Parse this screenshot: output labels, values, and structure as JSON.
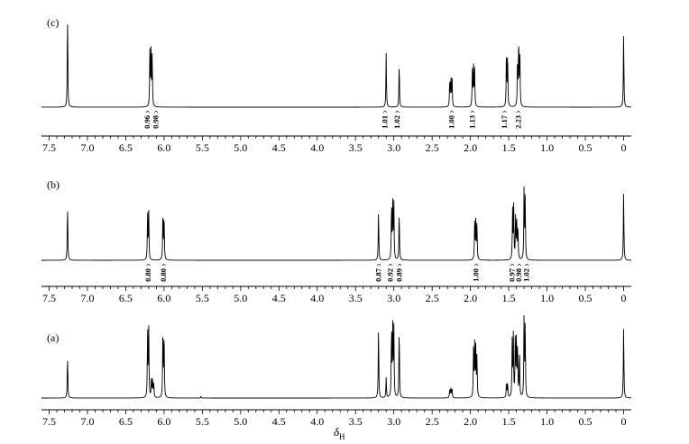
{
  "chart_data": [
    {
      "type": "line",
      "panel_label": "(c)",
      "xlim": [
        7.6,
        -0.1
      ],
      "tick_labels": [
        "7.5",
        "7.0",
        "6.5",
        "6.0",
        "5.5",
        "5.0",
        "4.5",
        "4.0",
        "3.5",
        "3.0",
        "2.5",
        "2.0",
        "1.5",
        "1.0",
        "0.5",
        "0"
      ],
      "peaks": [
        {
          "ppm": 7.26,
          "height": 1.0
        },
        {
          "ppm": 6.185,
          "height": 0.56
        },
        {
          "ppm": 6.17,
          "height": 0.57
        },
        {
          "ppm": 6.155,
          "height": 0.55
        },
        {
          "ppm": 3.1,
          "height": 0.56
        },
        {
          "ppm": 2.93,
          "height": 0.48
        },
        {
          "ppm": 2.27,
          "height": 0.3
        },
        {
          "ppm": 2.255,
          "height": 0.31
        },
        {
          "ppm": 2.24,
          "height": 0.3
        },
        {
          "ppm": 1.975,
          "height": 0.38
        },
        {
          "ppm": 1.96,
          "height": 0.4
        },
        {
          "ppm": 1.945,
          "height": 0.38
        },
        {
          "ppm": 1.53,
          "height": 0.54
        },
        {
          "ppm": 1.515,
          "height": 0.58
        },
        {
          "ppm": 1.385,
          "height": 0.5
        },
        {
          "ppm": 1.37,
          "height": 0.71
        },
        {
          "ppm": 1.355,
          "height": 0.58
        },
        {
          "ppm": 0.0,
          "height": 0.78
        }
      ],
      "integrations": [
        {
          "ppm": 6.22,
          "label": "0.96"
        },
        {
          "ppm": 6.11,
          "label": "0.98"
        },
        {
          "ppm": 3.12,
          "label": "1.01"
        },
        {
          "ppm": 2.96,
          "label": "1.02"
        },
        {
          "ppm": 2.25,
          "label": "1.00"
        },
        {
          "ppm": 1.98,
          "label": "1.13"
        },
        {
          "ppm": 1.56,
          "label": "1.17"
        },
        {
          "ppm": 1.38,
          "label": "2.23"
        }
      ]
    },
    {
      "type": "line",
      "panel_label": "(b)",
      "xlim": [
        7.6,
        -0.1
      ],
      "tick_labels": [
        "7.5",
        "7.0",
        "6.5",
        "6.0",
        "5.5",
        "5.0",
        "4.5",
        "4.0",
        "3.5",
        "3.0",
        "2.5",
        "2.0",
        "1.5",
        "1.0",
        "0.5",
        "0"
      ],
      "peaks": [
        {
          "ppm": 7.26,
          "height": 0.67
        },
        {
          "ppm": 6.215,
          "height": 0.55
        },
        {
          "ppm": 6.2,
          "height": 0.56
        },
        {
          "ppm": 6.015,
          "height": 0.55
        },
        {
          "ppm": 6.0,
          "height": 0.56
        },
        {
          "ppm": 3.2,
          "height": 0.6
        },
        {
          "ppm": 3.03,
          "height": 0.66
        },
        {
          "ppm": 3.015,
          "height": 0.7
        },
        {
          "ppm": 3.0,
          "height": 0.67
        },
        {
          "ppm": 2.93,
          "height": 0.6
        },
        {
          "ppm": 1.945,
          "height": 0.43
        },
        {
          "ppm": 1.93,
          "height": 0.46
        },
        {
          "ppm": 1.915,
          "height": 0.44
        },
        {
          "ppm": 1.45,
          "height": 0.58
        },
        {
          "ppm": 1.435,
          "height": 0.62
        },
        {
          "ppm": 1.41,
          "height": 0.52
        },
        {
          "ppm": 1.395,
          "height": 0.48
        },
        {
          "ppm": 1.38,
          "height": 0.41
        },
        {
          "ppm": 1.3,
          "height": 0.82
        },
        {
          "ppm": 1.285,
          "height": 0.75
        },
        {
          "ppm": 0.0,
          "height": 0.83
        }
      ],
      "integrations": [
        {
          "ppm": 6.21,
          "label": "0.80"
        },
        {
          "ppm": 6.01,
          "label": "0.80"
        },
        {
          "ppm": 3.2,
          "label": "0.87"
        },
        {
          "ppm": 3.05,
          "label": "0.92"
        },
        {
          "ppm": 2.93,
          "label": "0.89"
        },
        {
          "ppm": 1.93,
          "label": "1.00"
        },
        {
          "ppm": 1.46,
          "label": "0.97"
        },
        {
          "ppm": 1.37,
          "label": "0.98"
        },
        {
          "ppm": 1.27,
          "label": "1.02"
        }
      ]
    },
    {
      "type": "line",
      "panel_label": "(a)",
      "xlim": [
        7.6,
        -0.1
      ],
      "tick_labels": [
        "7.5",
        "7.0",
        "6.5",
        "6.0",
        "5.5",
        "5.0",
        "4.5",
        "4.0",
        "3.5",
        "3.0",
        "2.5",
        "2.0",
        "1.5",
        "1.0",
        "0.5",
        "0"
      ],
      "xlabel_main": "δ",
      "xlabel_sub": "H",
      "peaks": [
        {
          "ppm": 7.26,
          "height": 0.54
        },
        {
          "ppm": 6.215,
          "height": 0.83
        },
        {
          "ppm": 6.2,
          "height": 0.85
        },
        {
          "ppm": 6.165,
          "height": 0.22
        },
        {
          "ppm": 6.15,
          "height": 0.23
        },
        {
          "ppm": 6.135,
          "height": 0.2
        },
        {
          "ppm": 6.015,
          "height": 0.83
        },
        {
          "ppm": 6.0,
          "height": 0.85
        },
        {
          "ppm": 5.52,
          "height": 0.02
        },
        {
          "ppm": 3.2,
          "height": 0.9
        },
        {
          "ppm": 3.1,
          "height": 0.25
        },
        {
          "ppm": 3.03,
          "height": 0.88
        },
        {
          "ppm": 3.015,
          "height": 0.93
        },
        {
          "ppm": 3.0,
          "height": 0.88
        },
        {
          "ppm": 2.93,
          "height": 0.91
        },
        {
          "ppm": 2.27,
          "height": 0.12
        },
        {
          "ppm": 2.255,
          "height": 0.13
        },
        {
          "ppm": 2.24,
          "height": 0.11
        },
        {
          "ppm": 1.96,
          "height": 0.58
        },
        {
          "ppm": 1.945,
          "height": 0.64
        },
        {
          "ppm": 1.93,
          "height": 0.62
        },
        {
          "ppm": 1.915,
          "height": 0.54
        },
        {
          "ppm": 1.53,
          "height": 0.18
        },
        {
          "ppm": 1.515,
          "height": 0.2
        },
        {
          "ppm": 1.455,
          "height": 0.7
        },
        {
          "ppm": 1.44,
          "height": 0.75
        },
        {
          "ppm": 1.415,
          "height": 0.72
        },
        {
          "ppm": 1.4,
          "height": 0.76
        },
        {
          "ppm": 1.385,
          "height": 0.68
        },
        {
          "ppm": 1.36,
          "height": 0.6
        },
        {
          "ppm": 1.3,
          "height": 0.97
        },
        {
          "ppm": 1.285,
          "height": 0.9
        },
        {
          "ppm": 0.0,
          "height": 0.91
        }
      ],
      "integrations": []
    }
  ]
}
